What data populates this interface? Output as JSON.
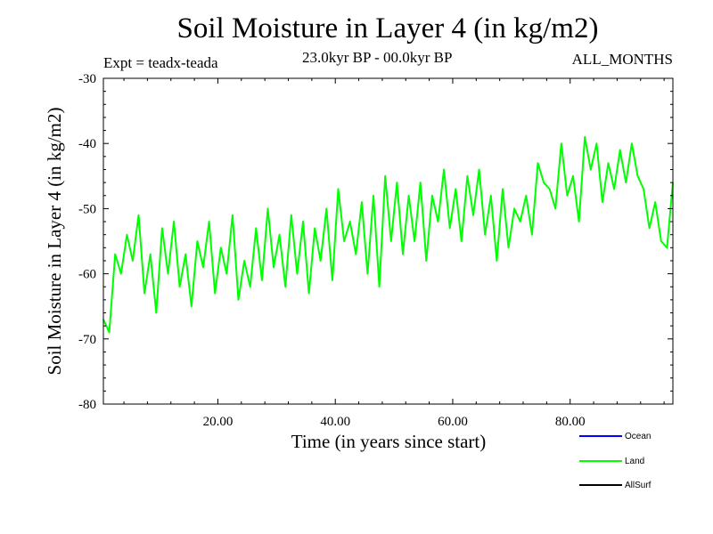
{
  "chart_data": {
    "type": "line",
    "title": "Soil Moisture in Layer 4 (in kg/m2)",
    "expt_label": "Expt = teadx-teada",
    "period_label": "23.0kyr BP - 00.0kyr BP",
    "months_label": "ALL_MONTHS",
    "xlabel": "Time (in years since start)",
    "ylabel": "Soil Moisture in Layer 4 (in kg/m2)",
    "xlim": [
      0.5,
      97.5
    ],
    "ylim": [
      -80,
      -30
    ],
    "x_ticks": [
      20,
      40,
      60,
      80
    ],
    "x_tick_labels": [
      "20.00",
      "40.00",
      "60.00",
      "80.00"
    ],
    "y_ticks": [
      -30,
      -40,
      -50,
      -60,
      -70,
      -80
    ],
    "y_tick_labels": [
      "-30",
      "-40",
      "-50",
      "-60",
      "-70",
      "-80"
    ],
    "legend_position": "bottom-right",
    "series": [
      {
        "name": "Ocean",
        "color": "#0000ff",
        "values": []
      },
      {
        "name": "Land",
        "color": "#00ff00",
        "x": [
          0.5,
          1.5,
          2.5,
          3.5,
          4.5,
          5.5,
          6.5,
          7.5,
          8.5,
          9.5,
          10.5,
          11.5,
          12.5,
          13.5,
          14.5,
          15.5,
          16.5,
          17.5,
          18.5,
          19.5,
          20.5,
          21.5,
          22.5,
          23.5,
          24.5,
          25.5,
          26.5,
          27.5,
          28.5,
          29.5,
          30.5,
          31.5,
          32.5,
          33.5,
          34.5,
          35.5,
          36.5,
          37.5,
          38.5,
          39.5,
          40.5,
          41.5,
          42.5,
          43.5,
          44.5,
          45.5,
          46.5,
          47.5,
          48.5,
          49.5,
          50.5,
          51.5,
          52.5,
          53.5,
          54.5,
          55.5,
          56.5,
          57.5,
          58.5,
          59.5,
          60.5,
          61.5,
          62.5,
          63.5,
          64.5,
          65.5,
          66.5,
          67.5,
          68.5,
          69.5,
          70.5,
          71.5,
          72.5,
          73.5,
          74.5,
          75.5,
          76.5,
          77.5,
          78.5,
          79.5,
          80.5,
          81.5,
          82.5,
          83.5,
          84.5,
          85.5,
          86.5,
          87.5,
          88.5,
          89.5,
          90.5,
          91.5,
          92.5,
          93.5,
          94.5,
          95.5,
          96.5,
          97.5
        ],
        "values": [
          -67,
          -69,
          -57,
          -60,
          -54,
          -58,
          -51,
          -63,
          -57,
          -66,
          -53,
          -60,
          -52,
          -62,
          -57,
          -65,
          -55,
          -59,
          -52,
          -63,
          -56,
          -60,
          -51,
          -64,
          -58,
          -62,
          -53,
          -61,
          -50,
          -59,
          -54,
          -62,
          -51,
          -60,
          -52,
          -63,
          -53,
          -58,
          -50,
          -61,
          -47,
          -55,
          -52,
          -57,
          -49,
          -60,
          -48,
          -62,
          -45,
          -55,
          -46,
          -57,
          -48,
          -55,
          -46,
          -58,
          -48,
          -52,
          -44,
          -53,
          -47,
          -55,
          -45,
          -51,
          -44,
          -54,
          -48,
          -58,
          -47,
          -56,
          -50,
          -52,
          -48,
          -54,
          -43,
          -46,
          -47,
          -50,
          -40,
          -48,
          -45,
          -52,
          -39,
          -44,
          -40,
          -49,
          -43,
          -47,
          -41,
          -46,
          -40,
          -45,
          -47,
          -53,
          -49,
          -55,
          -56,
          -46
        ]
      },
      {
        "name": "AllSurf",
        "color": "#000000",
        "values": []
      }
    ]
  }
}
